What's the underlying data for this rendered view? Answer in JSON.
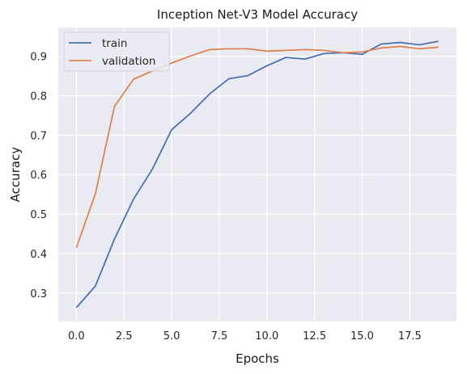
{
  "chart_data": {
    "type": "line",
    "title": "Inception Net-V3 Model Accuracy",
    "xlabel": "Epochs",
    "ylabel": "Accuracy",
    "x": [
      0,
      1,
      2,
      3,
      4,
      5,
      6,
      7,
      8,
      9,
      10,
      11,
      12,
      13,
      14,
      15,
      16,
      17,
      18,
      19
    ],
    "xlim": [
      -0.95,
      19.95
    ],
    "ylim": [
      0.228,
      0.973
    ],
    "xticks": [
      0.0,
      2.5,
      5.0,
      7.5,
      10.0,
      12.5,
      15.0,
      17.5
    ],
    "xtick_labels": [
      "0.0",
      "2.5",
      "5.0",
      "7.5",
      "10.0",
      "12.5",
      "15.0",
      "17.5"
    ],
    "yticks": [
      0.3,
      0.4,
      0.5,
      0.6,
      0.7,
      0.8,
      0.9
    ],
    "ytick_labels": [
      "0.3",
      "0.4",
      "0.5",
      "0.6",
      "0.7",
      "0.8",
      "0.9"
    ],
    "grid": true,
    "legend_position": "top-left",
    "background_color": "#eaeaf2",
    "grid_color": "#ffffff",
    "series": [
      {
        "name": "train",
        "color": "#4c72b0",
        "values": [
          0.263,
          0.318,
          0.437,
          0.538,
          0.615,
          0.714,
          0.756,
          0.805,
          0.843,
          0.851,
          0.876,
          0.897,
          0.893,
          0.907,
          0.909,
          0.905,
          0.931,
          0.935,
          0.929,
          0.938
        ]
      },
      {
        "name": "validation",
        "color": "#dd8452",
        "values": [
          0.415,
          0.552,
          0.773,
          0.842,
          0.863,
          0.883,
          0.901,
          0.917,
          0.919,
          0.919,
          0.913,
          0.915,
          0.917,
          0.915,
          0.909,
          0.911,
          0.921,
          0.925,
          0.919,
          0.923
        ]
      }
    ]
  }
}
